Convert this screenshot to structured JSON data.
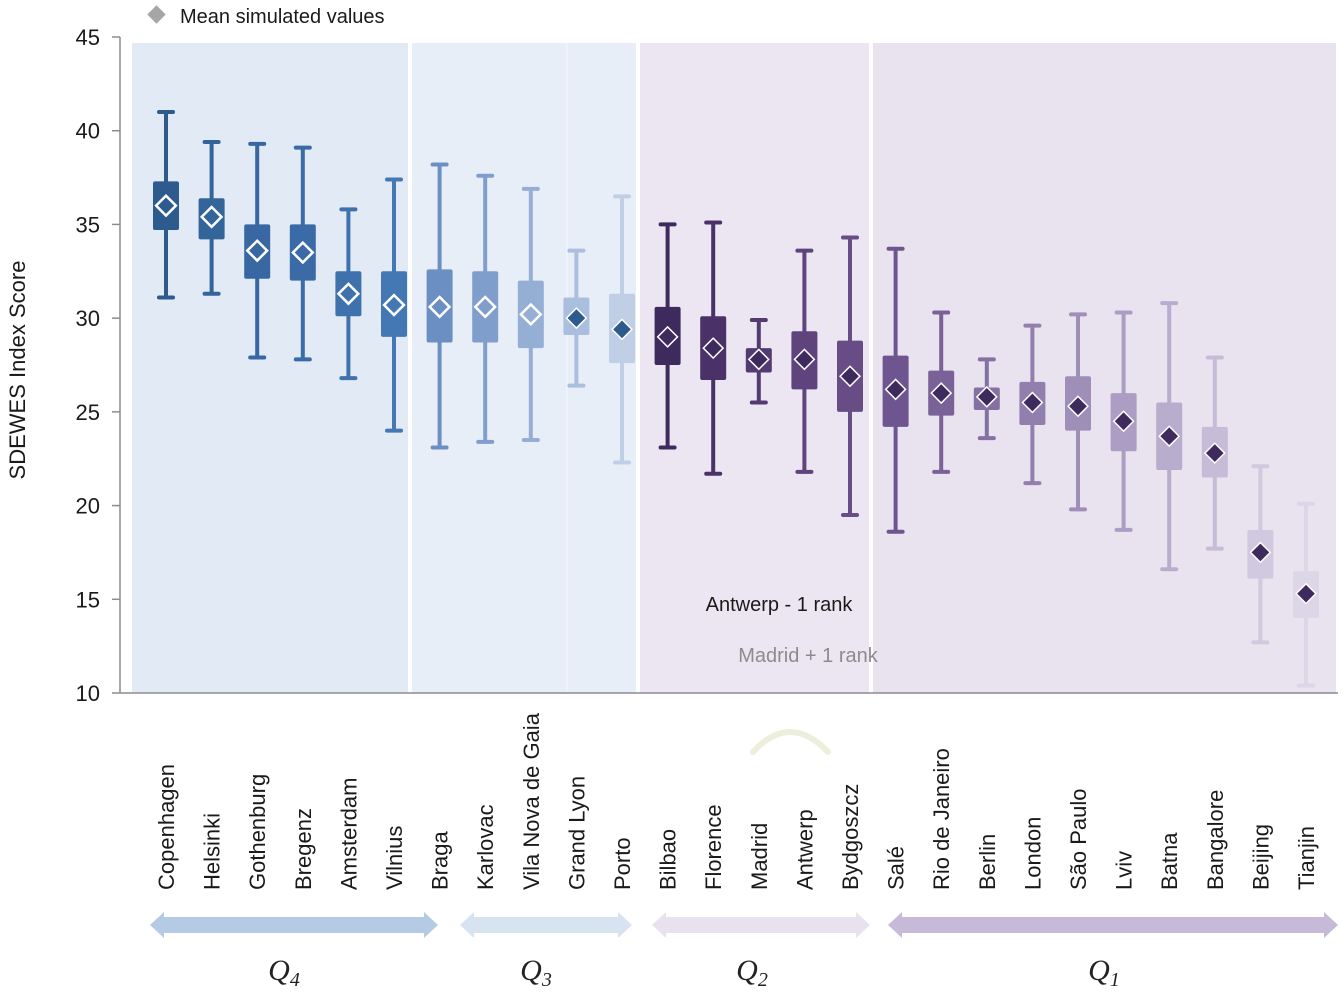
{
  "chart_data": {
    "type": "boxplot",
    "ylabel": "SDEWES Index Score",
    "ylim": [
      10,
      45
    ],
    "yticks": [
      10,
      15,
      20,
      25,
      30,
      35,
      40,
      45
    ],
    "legend": {
      "label": "Mean simulated values",
      "marker": "diamond",
      "color": "#a6a6a6",
      "position": "top-left"
    },
    "categories": [
      "Copenhagen",
      "Helsinki",
      "Gothenburg",
      "Bregenz",
      "Amsterdam",
      "Vilnius",
      "Braga",
      "Karlovac",
      "Vila Nova de Gaia",
      "Grand Lyon",
      "Porto",
      "Bilbao",
      "Florence",
      "Madrid",
      "Antwerp",
      "Bydgoszcz",
      "Salé",
      "Rio de Janeiro",
      "Berlin",
      "London",
      "São Paulo",
      "Lviv",
      "Batna",
      "Bangalore",
      "Beijing",
      "Tianjin"
    ],
    "boxes": [
      {
        "min": 31.1,
        "q1": 34.7,
        "q3": 37.3,
        "max": 41.0,
        "mean": 36.0
      },
      {
        "min": 31.3,
        "q1": 34.2,
        "q3": 36.4,
        "max": 39.4,
        "mean": 35.4
      },
      {
        "min": 27.9,
        "q1": 32.1,
        "q3": 35.0,
        "max": 39.3,
        "mean": 33.6
      },
      {
        "min": 27.8,
        "q1": 32.0,
        "q3": 35.0,
        "max": 39.1,
        "mean": 33.5
      },
      {
        "min": 26.8,
        "q1": 30.1,
        "q3": 32.5,
        "max": 35.8,
        "mean": 31.3
      },
      {
        "min": 24.0,
        "q1": 29.0,
        "q3": 32.5,
        "max": 37.4,
        "mean": 30.7
      },
      {
        "min": 23.1,
        "q1": 28.7,
        "q3": 32.6,
        "max": 38.2,
        "mean": 30.6
      },
      {
        "min": 23.4,
        "q1": 28.7,
        "q3": 32.5,
        "max": 37.6,
        "mean": 30.6
      },
      {
        "min": 23.5,
        "q1": 28.4,
        "q3": 32.0,
        "max": 36.9,
        "mean": 30.2
      },
      {
        "min": 26.4,
        "q1": 29.1,
        "q3": 31.1,
        "max": 33.6,
        "mean": 30.0
      },
      {
        "min": 22.3,
        "q1": 27.6,
        "q3": 31.3,
        "max": 36.5,
        "mean": 29.4
      },
      {
        "min": 23.1,
        "q1": 27.5,
        "q3": 30.6,
        "max": 35.0,
        "mean": 29.0
      },
      {
        "min": 21.7,
        "q1": 26.7,
        "q3": 30.1,
        "max": 35.1,
        "mean": 28.4
      },
      {
        "min": 25.5,
        "q1": 27.1,
        "q3": 28.4,
        "max": 29.9,
        "mean": 27.8
      },
      {
        "min": 21.8,
        "q1": 26.2,
        "q3": 29.3,
        "max": 33.6,
        "mean": 27.8
      },
      {
        "min": 19.5,
        "q1": 25.0,
        "q3": 28.8,
        "max": 34.3,
        "mean": 26.9
      },
      {
        "min": 18.6,
        "q1": 24.2,
        "q3": 28.0,
        "max": 33.7,
        "mean": 26.2
      },
      {
        "min": 21.8,
        "q1": 24.8,
        "q3": 27.2,
        "max": 30.3,
        "mean": 26.0
      },
      {
        "min": 23.6,
        "q1": 25.1,
        "q3": 26.3,
        "max": 27.8,
        "mean": 25.8
      },
      {
        "min": 21.2,
        "q1": 24.3,
        "q3": 26.6,
        "max": 29.6,
        "mean": 25.5
      },
      {
        "min": 19.8,
        "q1": 24.0,
        "q3": 26.9,
        "max": 30.2,
        "mean": 25.3
      },
      {
        "min": 18.7,
        "q1": 22.9,
        "q3": 26.0,
        "max": 30.3,
        "mean": 24.5
      },
      {
        "min": 16.6,
        "q1": 21.9,
        "q3": 25.5,
        "max": 30.8,
        "mean": 23.7
      },
      {
        "min": 17.7,
        "q1": 21.5,
        "q3": 24.2,
        "max": 27.9,
        "mean": 22.8
      },
      {
        "min": 12.7,
        "q1": 16.1,
        "q3": 18.7,
        "max": 22.1,
        "mean": 17.5
      },
      {
        "min": 10.4,
        "q1": 14.0,
        "q3": 16.5,
        "max": 20.1,
        "mean": 15.3
      }
    ],
    "quartiles": [
      {
        "label": "Q",
        "sub": "4",
        "from": 0,
        "to": 5
      },
      {
        "label": "Q",
        "sub": "3",
        "from": 6,
        "to": 10
      },
      {
        "label": "Q",
        "sub": "2",
        "from": 11,
        "to": 15
      },
      {
        "label": "Q",
        "sub": "1",
        "from": 16,
        "to": 25
      }
    ],
    "annotations": [
      "Antwerp - 1 rank",
      "Madrid + 1 rank"
    ],
    "colors": {
      "q4": [
        "#2e5b8e",
        "#33659b",
        "#3867a2",
        "#3b6ba6",
        "#3f72ad",
        "#4478b5"
      ],
      "q3": [
        "#6b8fc2",
        "#7f9ecb",
        "#94aed4",
        "#aabedd",
        "#c0cfe6"
      ],
      "q2": [
        "#3f2a5e",
        "#4a3269",
        "#533a72",
        "#5e437d",
        "#684c86"
      ],
      "q1": [
        "#6e5590",
        "#7a6299",
        "#8570a3",
        "#927fae",
        "#9e8eb8",
        "#ab9dc3",
        "#b9adcd",
        "#c6bcd7",
        "#d1c9e0",
        "#dcd6e8"
      ],
      "bg_q4": "#e2eaf5",
      "bg_q3": "#e8eef8",
      "bg_q2": "#ebe6f2",
      "bg_q1": "#e9e3f0"
    }
  }
}
